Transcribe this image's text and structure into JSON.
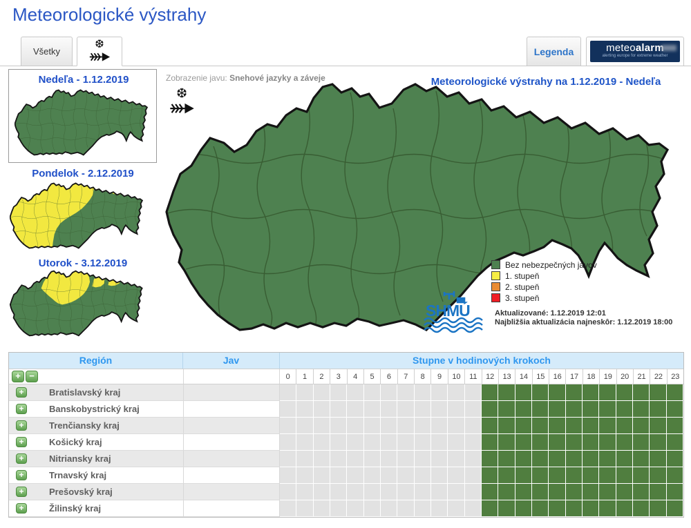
{
  "page": {
    "title": "Meteorologické výstrahy"
  },
  "tabbar": {
    "tab_all": "Všetky",
    "legend_button": "Legenda",
    "meteoalarm_brand_light": "meteo",
    "meteoalarm_brand_bold": "alarm",
    "meteoalarm_tagline": "alerting europe for extreme weather"
  },
  "sidebar": {
    "days": [
      {
        "label": "Nedeľa - 1.12.2019",
        "selected": true
      },
      {
        "label": "Pondelok - 2.12.2019",
        "selected": false
      },
      {
        "label": "Utorok - 3.12.2019",
        "selected": false
      }
    ]
  },
  "map_panel": {
    "display_prefix": "Zobrazenie javu:",
    "phenomenon": "Snehové jazyky a záveje",
    "map_title": "Meteorologické výstrahy na 1.12.2019 - Nedeľa",
    "legend": [
      {
        "label": "Bez nebezpečných javov",
        "color": "#4E8150"
      },
      {
        "label": "1. stupeň",
        "color": "#F7EE44"
      },
      {
        "label": "2. stupeň",
        "color": "#EA8C33"
      },
      {
        "label": "3. stupeň",
        "color": "#F01D24"
      }
    ],
    "updated": "Aktualizované: 1.12.2019 12:01",
    "next_update": "Najbližšia aktualizácia najneskôr: 1.12.2019 18:00",
    "logo_text": "SHMÚ"
  },
  "table": {
    "col_region": "Región",
    "col_phenomenon": "Jav",
    "col_steps": "Stupne v hodinových krokoch",
    "hours": [
      "0",
      "1",
      "2",
      "3",
      "4",
      "5",
      "6",
      "7",
      "8",
      "9",
      "10",
      "11",
      "12",
      "13",
      "14",
      "15",
      "16",
      "17",
      "18",
      "19",
      "20",
      "21",
      "22",
      "23"
    ],
    "empty_color": "#E2E2E2",
    "no_warning_color": "#507E3F",
    "rows": [
      {
        "region": "Bratislavský kraj",
        "phenomenon": "",
        "cells": [
          "e",
          "e",
          "e",
          "e",
          "e",
          "e",
          "e",
          "e",
          "e",
          "e",
          "e",
          "e",
          "g",
          "g",
          "g",
          "g",
          "g",
          "g",
          "g",
          "g",
          "g",
          "g",
          "g",
          "g"
        ]
      },
      {
        "region": "Banskobystrický kraj",
        "phenomenon": "",
        "cells": [
          "e",
          "e",
          "e",
          "e",
          "e",
          "e",
          "e",
          "e",
          "e",
          "e",
          "e",
          "e",
          "g",
          "g",
          "g",
          "g",
          "g",
          "g",
          "g",
          "g",
          "g",
          "g",
          "g",
          "g"
        ]
      },
      {
        "region": "Trenčiansky kraj",
        "phenomenon": "",
        "cells": [
          "e",
          "e",
          "e",
          "e",
          "e",
          "e",
          "e",
          "e",
          "e",
          "e",
          "e",
          "e",
          "g",
          "g",
          "g",
          "g",
          "g",
          "g",
          "g",
          "g",
          "g",
          "g",
          "g",
          "g"
        ]
      },
      {
        "region": "Košický kraj",
        "phenomenon": "",
        "cells": [
          "e",
          "e",
          "e",
          "e",
          "e",
          "e",
          "e",
          "e",
          "e",
          "e",
          "e",
          "e",
          "g",
          "g",
          "g",
          "g",
          "g",
          "g",
          "g",
          "g",
          "g",
          "g",
          "g",
          "g"
        ]
      },
      {
        "region": "Nitriansky kraj",
        "phenomenon": "",
        "cells": [
          "e",
          "e",
          "e",
          "e",
          "e",
          "e",
          "e",
          "e",
          "e",
          "e",
          "e",
          "e",
          "g",
          "g",
          "g",
          "g",
          "g",
          "g",
          "g",
          "g",
          "g",
          "g",
          "g",
          "g"
        ]
      },
      {
        "region": "Trnavský kraj",
        "phenomenon": "",
        "cells": [
          "e",
          "e",
          "e",
          "e",
          "e",
          "e",
          "e",
          "e",
          "e",
          "e",
          "e",
          "e",
          "g",
          "g",
          "g",
          "g",
          "g",
          "g",
          "g",
          "g",
          "g",
          "g",
          "g",
          "g"
        ]
      },
      {
        "region": "Prešovský kraj",
        "phenomenon": "",
        "cells": [
          "e",
          "e",
          "e",
          "e",
          "e",
          "e",
          "e",
          "e",
          "e",
          "e",
          "e",
          "e",
          "g",
          "g",
          "g",
          "g",
          "g",
          "g",
          "g",
          "g",
          "g",
          "g",
          "g",
          "g"
        ]
      },
      {
        "region": "Žilinský kraj",
        "phenomenon": "",
        "cells": [
          "e",
          "e",
          "e",
          "e",
          "e",
          "e",
          "e",
          "e",
          "e",
          "e",
          "e",
          "e",
          "g",
          "g",
          "g",
          "g",
          "g",
          "g",
          "g",
          "g",
          "g",
          "g",
          "g",
          "g"
        ]
      }
    ]
  }
}
